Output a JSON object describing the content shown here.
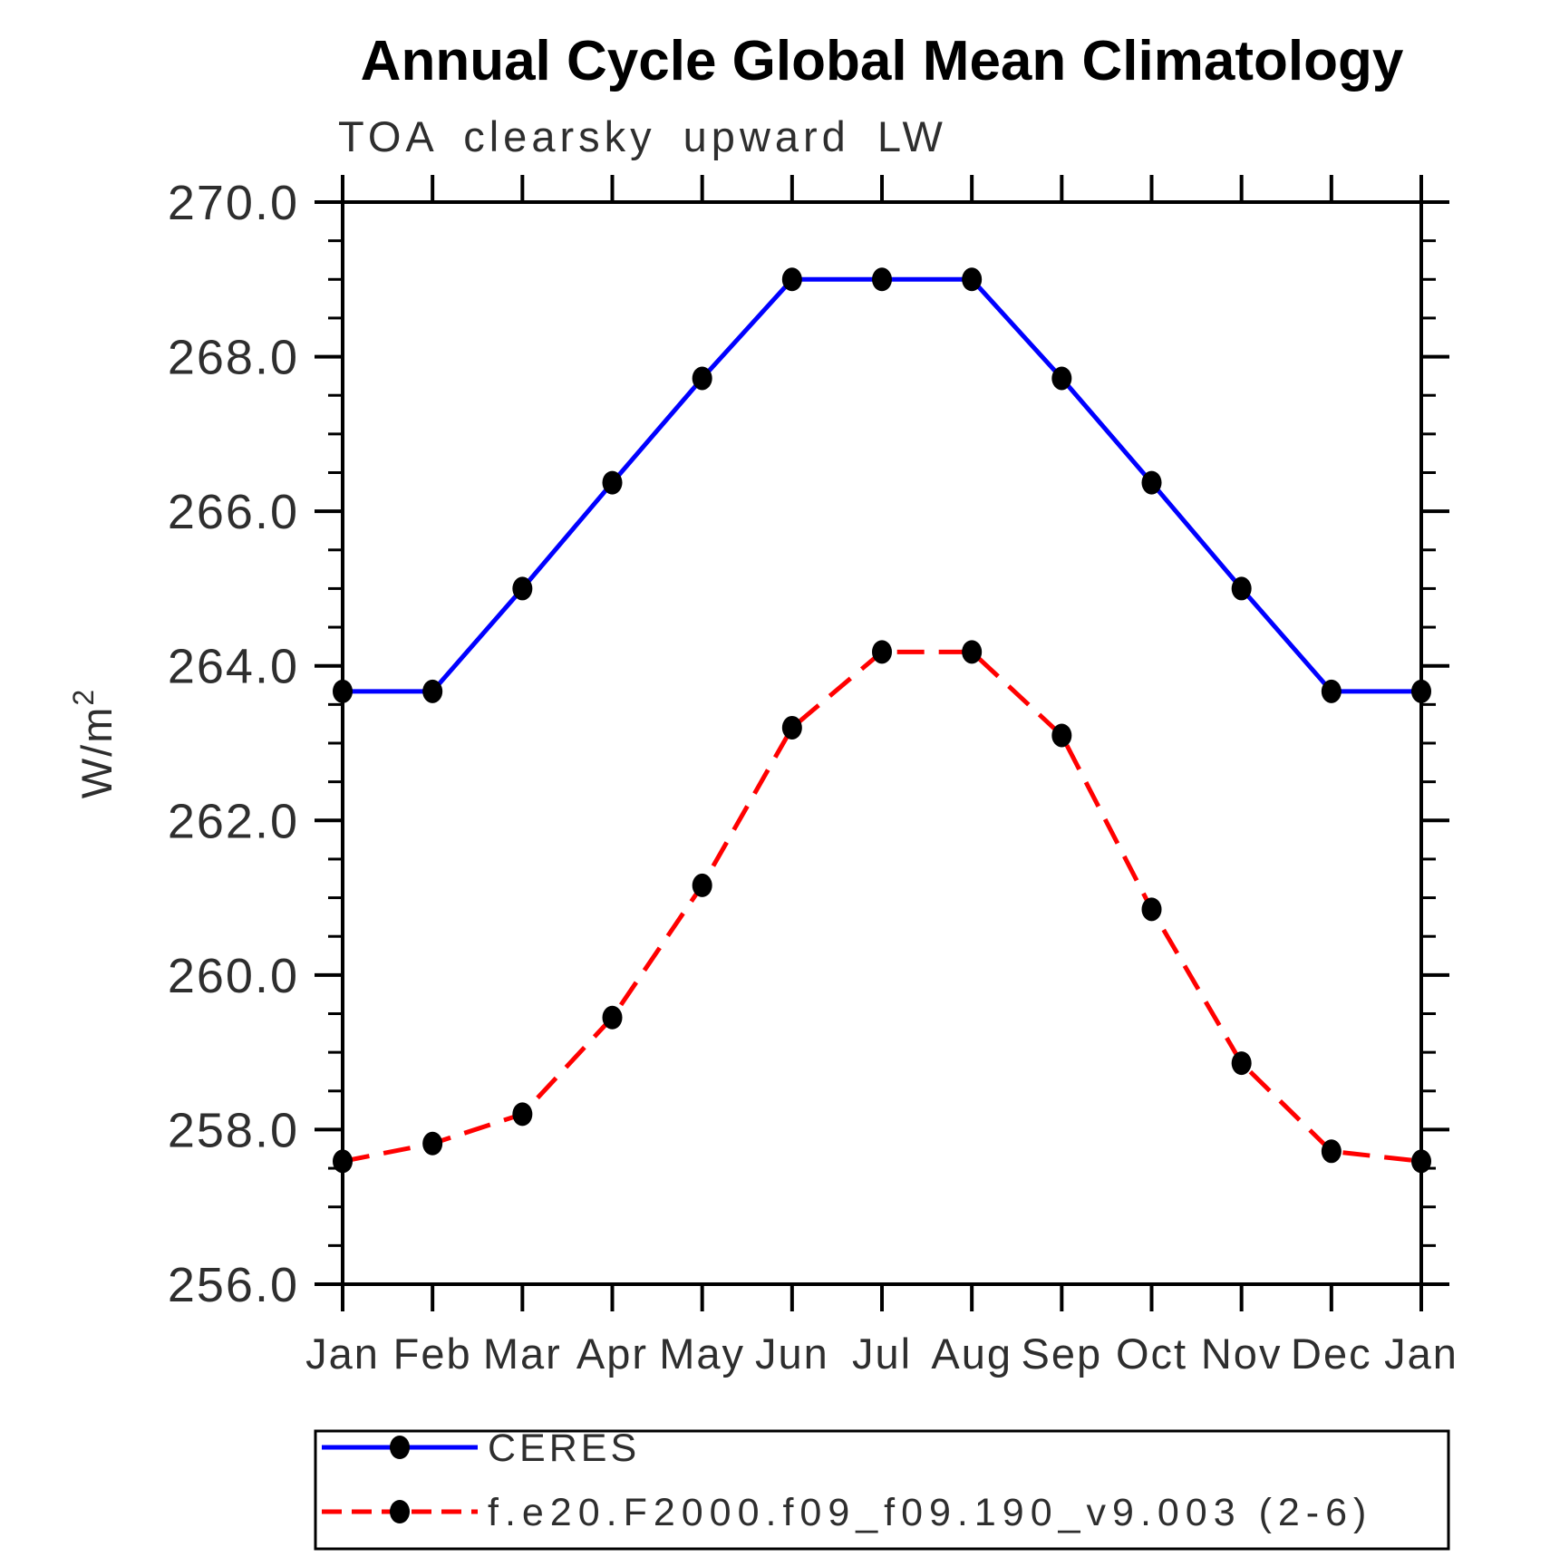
{
  "title": "Annual Cycle Global Mean Climatology",
  "subtitle": "TOA clearsky upward LW",
  "chart_data": {
    "type": "line",
    "title": "Annual Cycle Global Mean Climatology",
    "subtitle": "TOA clearsky upward LW",
    "xlabel": "",
    "ylabel": "W/m²",
    "categories": [
      "Jan",
      "Feb",
      "Mar",
      "Apr",
      "May",
      "Jun",
      "Jul",
      "Aug",
      "Sep",
      "Oct",
      "Nov",
      "Dec",
      "Jan"
    ],
    "ylim": [
      256.0,
      270.0
    ],
    "ytick_step": 2.0,
    "yminor_step": 0.5,
    "ytick_labels": [
      "270.0",
      "268.0",
      "266.0",
      "264.0",
      "262.0",
      "260.0",
      "258.0",
      "256.0"
    ],
    "grid": false,
    "legend_position": "bottom",
    "axis_color": "#000000",
    "marker_color": "#000000",
    "series": [
      {
        "name": "CERES",
        "color": "#0000ff",
        "style": "solid",
        "marker": "circle",
        "values": [
          263.67,
          263.67,
          265.0,
          266.37,
          267.72,
          269.0,
          269.0,
          269.0,
          267.72,
          266.37,
          265.0,
          263.67,
          263.67
        ]
      },
      {
        "name": "f.e20.F2000.f09_f09.190_v9.003 (2-6)",
        "color": "#ff0000",
        "style": "dashed",
        "marker": "circle",
        "values": [
          257.59,
          257.82,
          258.2,
          259.45,
          261.16,
          263.2,
          264.18,
          264.18,
          263.1,
          260.85,
          258.86,
          257.72,
          257.59
        ]
      }
    ]
  }
}
